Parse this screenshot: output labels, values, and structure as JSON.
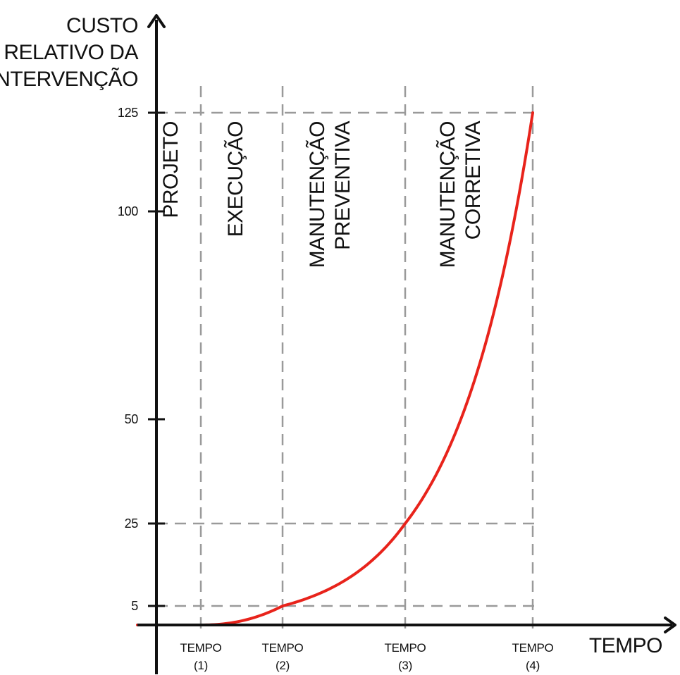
{
  "chart_data": {
    "type": "line",
    "y_axis": {
      "title_lines": [
        "CUSTO",
        "RELATIVO DA",
        "INTERVENÇÃO"
      ],
      "ticks": [
        5,
        25,
        50,
        100,
        125
      ]
    },
    "x_axis": {
      "title": "TEMPO",
      "ticks": [
        {
          "line1": "TEMPO",
          "line2": "(1)"
        },
        {
          "line1": "TEMPO",
          "line2": "(2)"
        },
        {
          "line1": "TEMPO",
          "line2": "(3)"
        },
        {
          "line1": "TEMPO",
          "line2": "(4)"
        }
      ]
    },
    "phases": [
      {
        "lines": [
          "PROJETO"
        ]
      },
      {
        "lines": [
          "EXECUÇÃO"
        ]
      },
      {
        "lines": [
          "MANUTENÇÃO",
          "PREVENTIVA"
        ]
      },
      {
        "lines": [
          "MANUTENÇÃO",
          "CORRETIVA"
        ]
      }
    ],
    "reference_points": [
      {
        "x": 1,
        "y": 1
      },
      {
        "x": 2,
        "y": 5
      },
      {
        "x": 3,
        "y": 25
      },
      {
        "x": 4,
        "y": 125
      }
    ],
    "curve": {
      "x_start": 0,
      "x_end": 4,
      "values": [
        0,
        0,
        1,
        2,
        5,
        10,
        25,
        60,
        125
      ],
      "color": "#e8231b"
    },
    "grid_color": "#9a9a9a",
    "axis_color": "#111111"
  }
}
